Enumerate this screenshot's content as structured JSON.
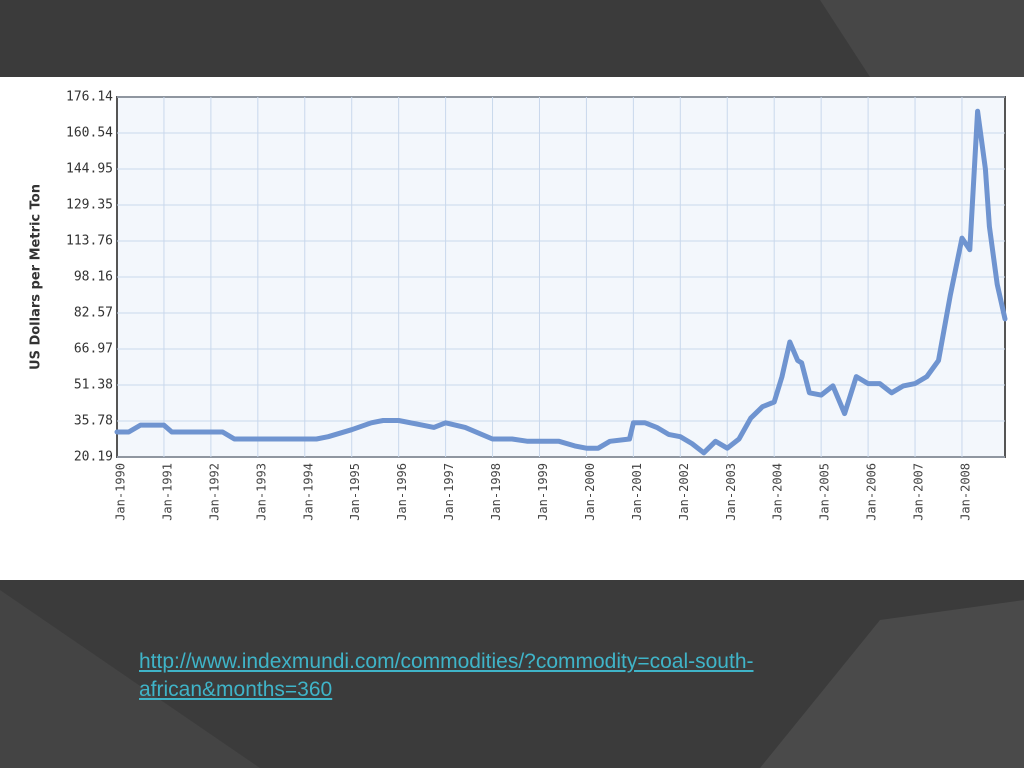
{
  "slide": {
    "background": "#3b3b3b",
    "source_link": "http://www.indexmundi.com/commodities/?commodity=coal-south-african&months=360",
    "link_color": "#3fb4c8"
  },
  "chart_data": {
    "type": "line",
    "title": "",
    "xlabel": "",
    "ylabel": "US Dollars per Metric Ton",
    "y_ticks": [
      "176.14",
      "160.54",
      "144.95",
      "129.35",
      "113.76",
      "98.16",
      "82.57",
      "66.97",
      "51.38",
      "35.78",
      "20.19"
    ],
    "ylim": [
      20.19,
      176.14
    ],
    "x_ticks": [
      "Jan-1990",
      "Jan-1991",
      "Jan-1992",
      "Jan-1993",
      "Jan-1994",
      "Jan-1995",
      "Jan-1996",
      "Jan-1997",
      "Jan-1998",
      "Jan-1999",
      "Jan-2000",
      "Jan-2001",
      "Jan-2002",
      "Jan-2003",
      "Jan-2004",
      "Jan-2005",
      "Jan-2006",
      "Jan-2007",
      "Jan-2008"
    ],
    "xlim": [
      "1990-01",
      "2008-12"
    ],
    "grid": true,
    "line_color": "#6f94d0",
    "series": [
      {
        "name": "",
        "x": [
          "1990-01",
          "1990-04",
          "1990-07",
          "1991-01",
          "1991-03",
          "1991-06",
          "1992-01",
          "1992-04",
          "1992-07",
          "1993-01",
          "1993-07",
          "1994-01",
          "1994-04",
          "1994-07",
          "1995-01",
          "1995-06",
          "1995-09",
          "1996-01",
          "1996-07",
          "1996-10",
          "1997-01",
          "1997-06",
          "1998-01",
          "1998-06",
          "1998-10",
          "1999-01",
          "1999-06",
          "1999-10",
          "2000-01",
          "2000-04",
          "2000-07",
          "2000-12",
          "2001-01",
          "2001-04",
          "2001-07",
          "2001-10",
          "2002-01",
          "2002-04",
          "2002-07",
          "2002-10",
          "2003-01",
          "2003-04",
          "2003-07",
          "2003-10",
          "2004-01",
          "2004-03",
          "2004-05",
          "2004-07",
          "2004-08",
          "2004-10",
          "2005-01",
          "2005-04",
          "2005-07",
          "2005-10",
          "2006-01",
          "2006-04",
          "2006-07",
          "2006-10",
          "2007-01",
          "2007-04",
          "2007-07",
          "2007-10",
          "2008-01",
          "2008-03",
          "2008-05",
          "2008-07",
          "2008-08",
          "2008-10",
          "2008-12"
        ],
        "values": [
          31,
          31,
          34,
          34,
          31,
          31,
          31,
          31,
          28,
          28,
          28,
          28,
          28,
          29,
          32,
          35,
          36,
          36,
          34,
          33,
          35,
          33,
          28,
          28,
          27,
          27,
          27,
          25,
          24,
          24,
          27,
          28,
          35,
          35,
          33,
          30,
          29,
          26,
          22,
          27,
          24,
          28,
          37,
          42,
          44,
          55,
          70,
          62,
          61,
          48,
          47,
          51,
          39,
          55,
          52,
          52,
          48,
          51,
          52,
          55,
          62,
          90,
          115,
          110,
          170,
          145,
          120,
          95,
          80
        ]
      }
    ]
  }
}
